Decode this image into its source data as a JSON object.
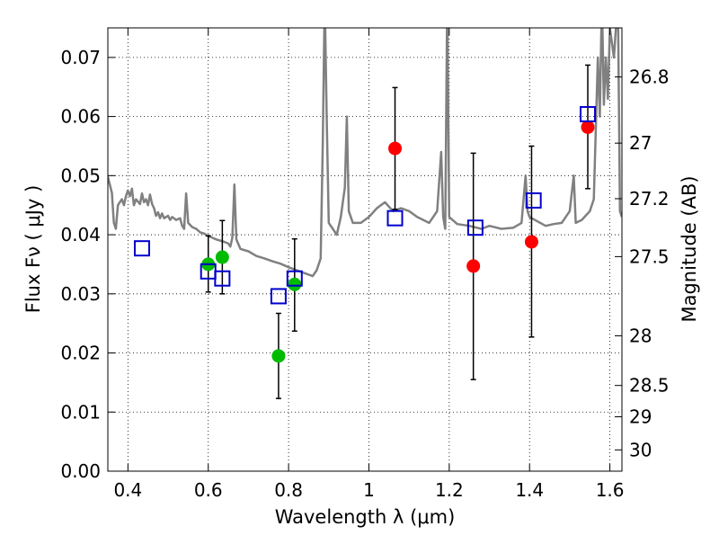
{
  "chart_data": {
    "type": "scatter",
    "xlabel": "Wavelength  λ (μm)",
    "ylabel": "Flux  Fν  ( μJy )",
    "ylabel_right": "Magnitude (AB)",
    "xlim": [
      0.35,
      1.63
    ],
    "ylim": [
      0.0,
      0.075
    ],
    "grid": true,
    "x_ticks": [
      0.4,
      0.6,
      0.8,
      1.0,
      1.2,
      1.4,
      1.6
    ],
    "x_tick_labels": [
      "0.4",
      "0.6",
      "0.8",
      "1",
      "1.2",
      "1.4",
      "1.6"
    ],
    "y_ticks": [
      0.0,
      0.01,
      0.02,
      0.03,
      0.04,
      0.05,
      0.06,
      0.07
    ],
    "y_tick_labels": [
      "0.00",
      "0.01",
      "0.02",
      "0.03",
      "0.04",
      "0.05",
      "0.06",
      "0.07"
    ],
    "right_ticks": [
      {
        "flux": 0.0667,
        "label": "26.8"
      },
      {
        "flux": 0.0555,
        "label": "27"
      },
      {
        "flux": 0.0461,
        "label": "27.2"
      },
      {
        "flux": 0.0363,
        "label": "27.5"
      },
      {
        "flux": 0.0229,
        "label": "28"
      },
      {
        "flux": 0.0145,
        "label": "28.5"
      },
      {
        "flux": 0.0092,
        "label": "29"
      },
      {
        "flux": 0.0036,
        "label": "30"
      }
    ],
    "colors": {
      "green": "#00bb00",
      "red": "#ff0000",
      "blue": "#0000cc",
      "model": "#808080",
      "error": "#000000"
    },
    "series": [
      {
        "marker": "circle-green",
        "points": [
          {
            "x": 0.6,
            "y": 0.035,
            "lo": 0.0303,
            "hi": 0.0398
          },
          {
            "x": 0.635,
            "y": 0.0362,
            "lo": 0.03,
            "hi": 0.0424
          },
          {
            "x": 0.775,
            "y": 0.0195,
            "lo": 0.0123,
            "hi": 0.0267
          },
          {
            "x": 0.815,
            "y": 0.0316,
            "lo": 0.0237,
            "hi": 0.0393
          }
        ]
      },
      {
        "marker": "circle-red",
        "points": [
          {
            "x": 1.065,
            "y": 0.0546,
            "lo": 0.0443,
            "hi": 0.0649
          },
          {
            "x": 1.26,
            "y": 0.0347,
            "lo": 0.0155,
            "hi": 0.0538
          },
          {
            "x": 1.405,
            "y": 0.0388,
            "lo": 0.0227,
            "hi": 0.055
          },
          {
            "x": 1.545,
            "y": 0.0582,
            "lo": 0.0478,
            "hi": 0.0687
          }
        ]
      },
      {
        "marker": "square-blue",
        "points": [
          {
            "x": 0.435,
            "y": 0.0377
          },
          {
            "x": 0.6,
            "y": 0.0338
          },
          {
            "x": 0.635,
            "y": 0.0326
          },
          {
            "x": 0.775,
            "y": 0.0296
          },
          {
            "x": 0.815,
            "y": 0.0326
          },
          {
            "x": 1.065,
            "y": 0.0428
          },
          {
            "x": 1.265,
            "y": 0.0412
          },
          {
            "x": 1.41,
            "y": 0.0458
          },
          {
            "x": 1.545,
            "y": 0.0604
          }
        ]
      }
    ],
    "model_spectrum": [
      [
        0.35,
        0.0498
      ],
      [
        0.36,
        0.0471
      ],
      [
        0.365,
        0.042
      ],
      [
        0.37,
        0.041
      ],
      [
        0.375,
        0.045
      ],
      [
        0.385,
        0.046
      ],
      [
        0.39,
        0.045
      ],
      [
        0.395,
        0.0465
      ],
      [
        0.4,
        0.0475
      ],
      [
        0.405,
        0.0465
      ],
      [
        0.41,
        0.0478
      ],
      [
        0.415,
        0.045
      ],
      [
        0.42,
        0.046
      ],
      [
        0.43,
        0.0452
      ],
      [
        0.435,
        0.047
      ],
      [
        0.44,
        0.0455
      ],
      [
        0.445,
        0.046
      ],
      [
        0.45,
        0.045
      ],
      [
        0.455,
        0.0468
      ],
      [
        0.46,
        0.0452
      ],
      [
        0.465,
        0.0445
      ],
      [
        0.47,
        0.0432
      ],
      [
        0.475,
        0.0438
      ],
      [
        0.48,
        0.0428
      ],
      [
        0.485,
        0.0436
      ],
      [
        0.49,
        0.0428
      ],
      [
        0.5,
        0.0432
      ],
      [
        0.505,
        0.0425
      ],
      [
        0.51,
        0.043
      ],
      [
        0.52,
        0.0425
      ],
      [
        0.53,
        0.0428
      ],
      [
        0.535,
        0.0415
      ],
      [
        0.54,
        0.041
      ],
      [
        0.545,
        0.047
      ],
      [
        0.55,
        0.042
      ],
      [
        0.56,
        0.0413
      ],
      [
        0.57,
        0.041
      ],
      [
        0.58,
        0.0404
      ],
      [
        0.59,
        0.0402
      ],
      [
        0.6,
        0.0398
      ],
      [
        0.62,
        0.0392
      ],
      [
        0.64,
        0.0388
      ],
      [
        0.65,
        0.0385
      ],
      [
        0.655,
        0.038
      ],
      [
        0.66,
        0.0395
      ],
      [
        0.665,
        0.0485
      ],
      [
        0.67,
        0.0392
      ],
      [
        0.68,
        0.0376
      ],
      [
        0.7,
        0.0372
      ],
      [
        0.72,
        0.0364
      ],
      [
        0.74,
        0.036
      ],
      [
        0.76,
        0.0355
      ],
      [
        0.78,
        0.0351
      ],
      [
        0.8,
        0.0345
      ],
      [
        0.82,
        0.034
      ],
      [
        0.84,
        0.0335
      ],
      [
        0.86,
        0.033
      ],
      [
        0.87,
        0.034
      ],
      [
        0.88,
        0.036
      ],
      [
        0.885,
        0.055
      ],
      [
        0.89,
        0.08
      ],
      [
        0.895,
        0.06
      ],
      [
        0.9,
        0.042
      ],
      [
        0.91,
        0.041
      ],
      [
        0.92,
        0.04
      ],
      [
        0.93,
        0.043
      ],
      [
        0.94,
        0.048
      ],
      [
        0.945,
        0.06
      ],
      [
        0.95,
        0.044
      ],
      [
        0.96,
        0.042
      ],
      [
        0.98,
        0.042
      ],
      [
        1.0,
        0.043
      ],
      [
        1.02,
        0.0445
      ],
      [
        1.04,
        0.0455
      ],
      [
        1.06,
        0.044
      ],
      [
        1.08,
        0.0445
      ],
      [
        1.1,
        0.044
      ],
      [
        1.12,
        0.043
      ],
      [
        1.15,
        0.042
      ],
      [
        1.17,
        0.044
      ],
      [
        1.18,
        0.054
      ],
      [
        1.185,
        0.043
      ],
      [
        1.19,
        0.041
      ],
      [
        1.195,
        0.08
      ],
      [
        1.2,
        0.043
      ],
      [
        1.22,
        0.0418
      ],
      [
        1.25,
        0.0415
      ],
      [
        1.28,
        0.041
      ],
      [
        1.3,
        0.0415
      ],
      [
        1.33,
        0.041
      ],
      [
        1.36,
        0.0412
      ],
      [
        1.38,
        0.042
      ],
      [
        1.39,
        0.05
      ],
      [
        1.395,
        0.044
      ],
      [
        1.4,
        0.043
      ],
      [
        1.44,
        0.0415
      ],
      [
        1.46,
        0.0418
      ],
      [
        1.48,
        0.042
      ],
      [
        1.5,
        0.044
      ],
      [
        1.51,
        0.05
      ],
      [
        1.515,
        0.042
      ],
      [
        1.53,
        0.0425
      ],
      [
        1.55,
        0.044
      ],
      [
        1.56,
        0.046
      ],
      [
        1.57,
        0.07
      ],
      [
        1.575,
        0.06
      ],
      [
        1.58,
        0.08
      ],
      [
        1.585,
        0.062
      ],
      [
        1.59,
        0.07
      ],
      [
        1.595,
        0.063
      ],
      [
        1.6,
        0.075
      ],
      [
        1.61,
        0.07
      ],
      [
        1.62,
        0.08
      ],
      [
        1.625,
        0.044
      ],
      [
        1.63,
        0.043
      ]
    ]
  }
}
